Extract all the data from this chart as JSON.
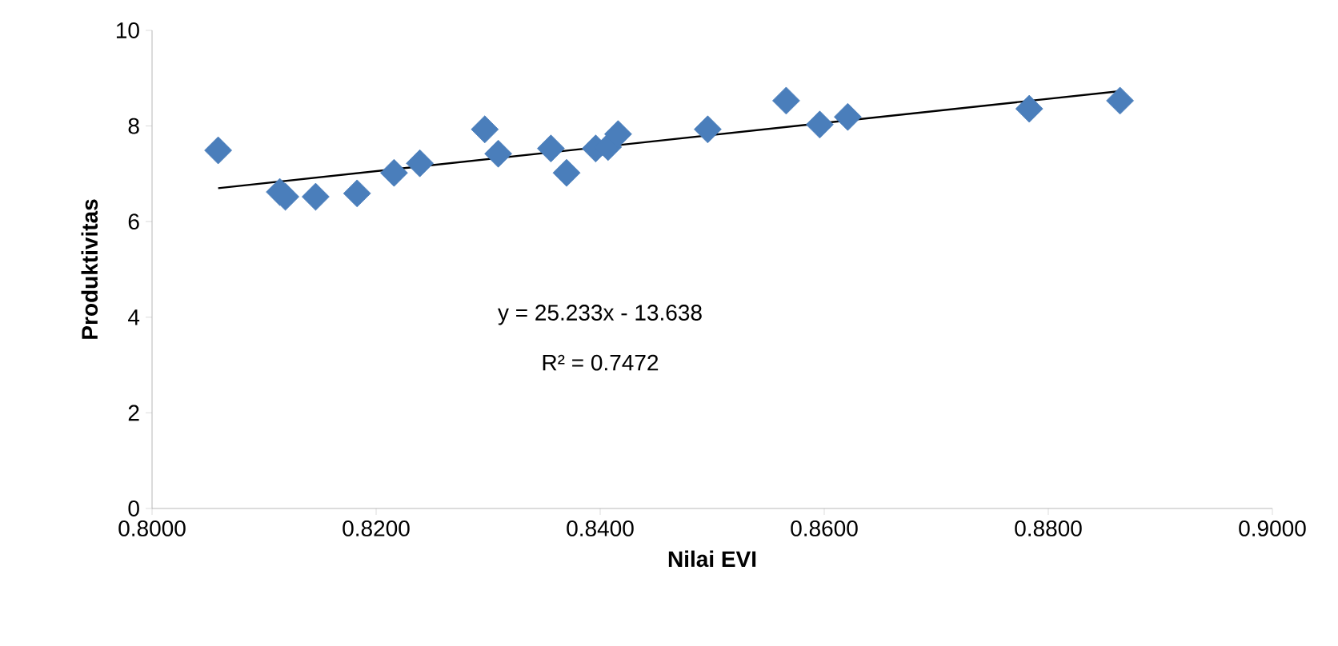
{
  "chart_data": {
    "type": "scatter",
    "xlabel": "Nilai EVI",
    "ylabel": "Produktivitas",
    "xlim": [
      0.8,
      0.9
    ],
    "ylim": [
      0,
      10
    ],
    "xticks": [
      {
        "value": 0.8,
        "label": "0.8000"
      },
      {
        "value": 0.82,
        "label": "0.8200"
      },
      {
        "value": 0.84,
        "label": "0.8400"
      },
      {
        "value": 0.86,
        "label": "0.8600"
      },
      {
        "value": 0.88,
        "label": "0.8800"
      },
      {
        "value": 0.9,
        "label": "0.9000"
      }
    ],
    "yticks": [
      0,
      2,
      4,
      6,
      8,
      10
    ],
    "series": [
      {
        "marker": "diamond",
        "color": "#4a7ebb",
        "x": [
          0.8059,
          0.8114,
          0.8119,
          0.8146,
          0.8183,
          0.8216,
          0.8239,
          0.8297,
          0.8309,
          0.8356,
          0.837,
          0.8396,
          0.8407,
          0.8416,
          0.8496,
          0.8566,
          0.8596,
          0.8621,
          0.8783,
          0.8864
        ],
        "values": [
          7.49,
          6.62,
          6.52,
          6.52,
          6.59,
          7.02,
          7.22,
          7.93,
          7.42,
          7.53,
          7.02,
          7.53,
          7.56,
          7.83,
          7.93,
          8.53,
          8.03,
          8.19,
          8.36,
          8.53
        ]
      },
      {
        "type": "line",
        "color": "#000000",
        "x": [
          0.8059,
          0.8864
        ],
        "values": [
          6.7,
          8.73
        ]
      }
    ],
    "annotations": [
      "y = 25.233x - 13.638",
      "R² = 0.7472"
    ]
  }
}
